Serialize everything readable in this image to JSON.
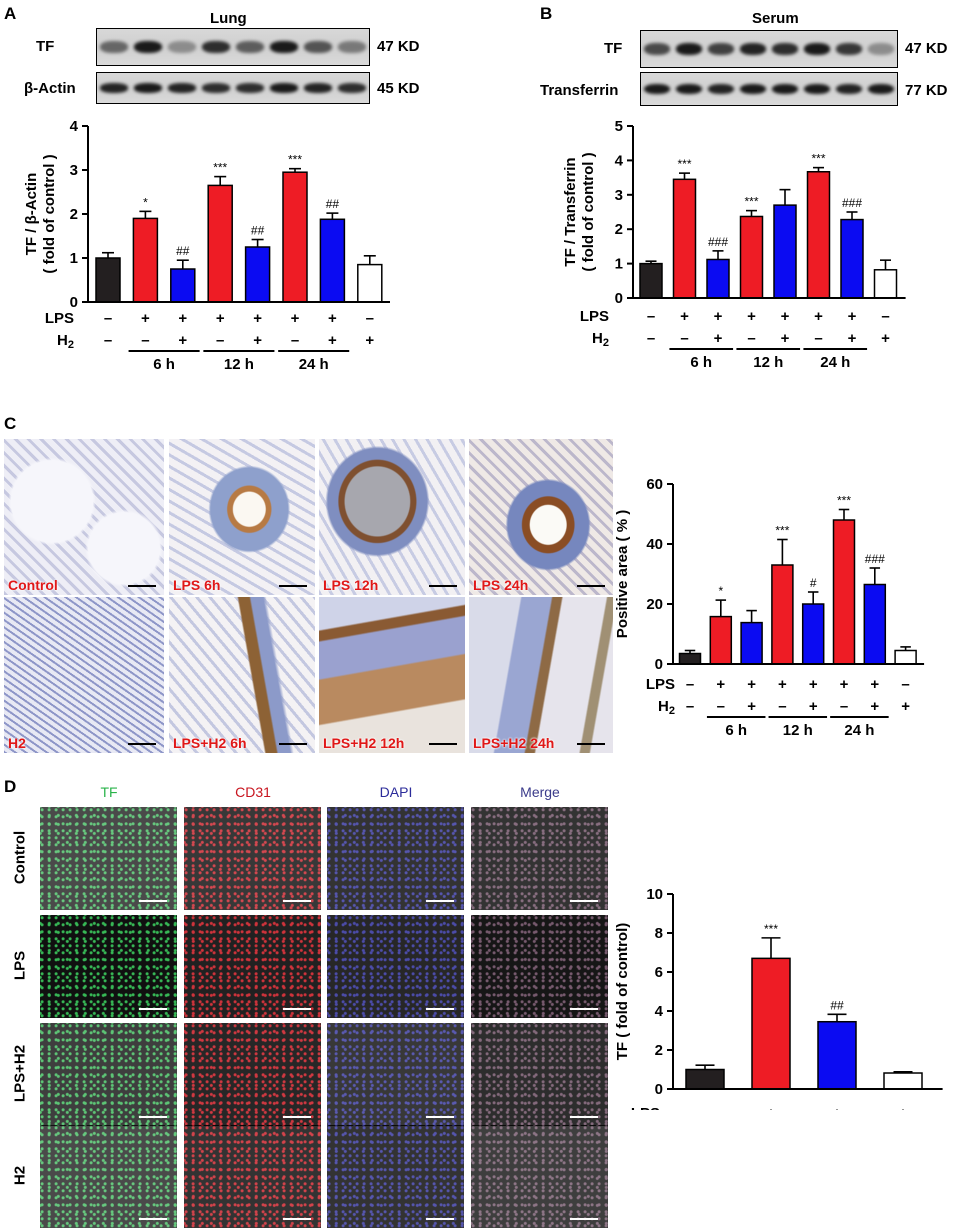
{
  "panels": {
    "A": "A",
    "B": "B",
    "C": "C",
    "D": "D"
  },
  "blot_a": {
    "title": "Lung",
    "row1_label": "TF",
    "row1_kd": "47 KD",
    "row2_label": "β-Actin",
    "row2_kd": "45 KD"
  },
  "blot_b": {
    "title": "Serum",
    "row1_label": "TF",
    "row1_kd": "47 KD",
    "row2_label": "Transferrin",
    "row2_kd": "77 KD"
  },
  "histology": {
    "top": [
      "Control",
      "LPS 6h",
      "LPS 12h",
      "LPS 24h"
    ],
    "bottom": [
      "H2",
      "LPS+H2 6h",
      "LPS+H2 12h",
      "LPS+H2 24h"
    ]
  },
  "fluor": {
    "columns": [
      "TF",
      "CD31",
      "DAPI",
      "Merge"
    ],
    "rows": [
      "Control",
      "LPS",
      "LPS+H2",
      "H2"
    ]
  },
  "colors": {
    "control": "#231f20",
    "lps": "#ee1c25",
    "h2": "#0b0bf2",
    "h2only": "#ffffff",
    "tf_green": "#29b34a",
    "cd31_red": "#c8141e",
    "dapi_blue": "#2b2b9a"
  },
  "chart_data": [
    {
      "id": "A",
      "type": "bar",
      "ylabel": "TF / β-Actin",
      "ylabel2": "( fold of control )",
      "ylim": [
        0,
        4
      ],
      "yticks": [
        0,
        1,
        2,
        3,
        4
      ],
      "values": [
        1.0,
        1.9,
        0.75,
        2.65,
        1.25,
        2.95,
        1.88,
        0.85
      ],
      "errors": [
        0.12,
        0.16,
        0.2,
        0.2,
        0.17,
        0.08,
        0.14,
        0.2
      ],
      "fill": [
        "control",
        "lps",
        "h2",
        "lps",
        "h2",
        "lps",
        "h2",
        "h2only"
      ],
      "annotations": [
        "",
        "*",
        "##",
        "***",
        "##",
        "***",
        "##",
        ""
      ],
      "lps_row": [
        "–",
        "+",
        "+",
        "+",
        "+",
        "+",
        "+",
        "–"
      ],
      "h2_row": [
        "–",
        "–",
        "+",
        "–",
        "+",
        "–",
        "+",
        "+"
      ],
      "groups": [
        "6 h",
        "12 h",
        "24 h"
      ]
    },
    {
      "id": "B",
      "type": "bar",
      "ylabel": "TF / Transferrin",
      "ylabel2": "( fold of control )",
      "ylim": [
        0,
        5
      ],
      "yticks": [
        0,
        1,
        2,
        3,
        4,
        5
      ],
      "values": [
        1.0,
        3.45,
        1.12,
        2.37,
        2.7,
        3.67,
        2.28,
        0.82
      ],
      "errors": [
        0.07,
        0.18,
        0.25,
        0.17,
        0.45,
        0.12,
        0.22,
        0.28
      ],
      "fill": [
        "control",
        "lps",
        "h2",
        "lps",
        "h2",
        "lps",
        "h2",
        "h2only"
      ],
      "annotations": [
        "",
        "***",
        "###",
        "***",
        "",
        "***",
        "###",
        ""
      ],
      "lps_row": [
        "–",
        "+",
        "+",
        "+",
        "+",
        "+",
        "+",
        "–"
      ],
      "h2_row": [
        "–",
        "–",
        "+",
        "–",
        "+",
        "–",
        "+",
        "+"
      ],
      "groups": [
        "6 h",
        "12 h",
        "24 h"
      ]
    },
    {
      "id": "C",
      "type": "bar",
      "ylabel": "Positive area ( % )",
      "ylabel2": "",
      "ylim": [
        0,
        60
      ],
      "yticks": [
        0,
        20,
        40,
        60
      ],
      "values": [
        3.5,
        15.8,
        13.8,
        33.0,
        20.0,
        48.0,
        26.5,
        4.5
      ],
      "errors": [
        1.0,
        5.5,
        4.0,
        8.5,
        4.0,
        3.5,
        5.5,
        1.2
      ],
      "fill": [
        "control",
        "lps",
        "h2",
        "lps",
        "h2",
        "lps",
        "h2",
        "h2only"
      ],
      "annotations": [
        "",
        "*",
        "",
        "***",
        "#",
        "***",
        "###",
        ""
      ],
      "lps_row": [
        "–",
        "+",
        "+",
        "+",
        "+",
        "+",
        "+",
        "–"
      ],
      "h2_row": [
        "–",
        "–",
        "+",
        "–",
        "+",
        "–",
        "+",
        "+"
      ],
      "groups": [
        "6 h",
        "12 h",
        "24 h"
      ]
    },
    {
      "id": "D",
      "type": "bar",
      "ylabel": "TF ( fold of control)",
      "ylabel2": "",
      "ylim": [
        0,
        10
      ],
      "yticks": [
        0,
        2,
        4,
        6,
        8,
        10
      ],
      "values": [
        1.0,
        6.7,
        3.45,
        0.82
      ],
      "errors": [
        0.22,
        1.05,
        0.38,
        0.06
      ],
      "fill": [
        "control",
        "lps",
        "h2",
        "h2only"
      ],
      "annotations": [
        "",
        "***",
        "##",
        ""
      ],
      "lps_row": [
        "–",
        "+",
        "+",
        "+"
      ],
      "h2_row": [
        "–",
        "–",
        "+",
        "–"
      ],
      "groups": []
    }
  ]
}
